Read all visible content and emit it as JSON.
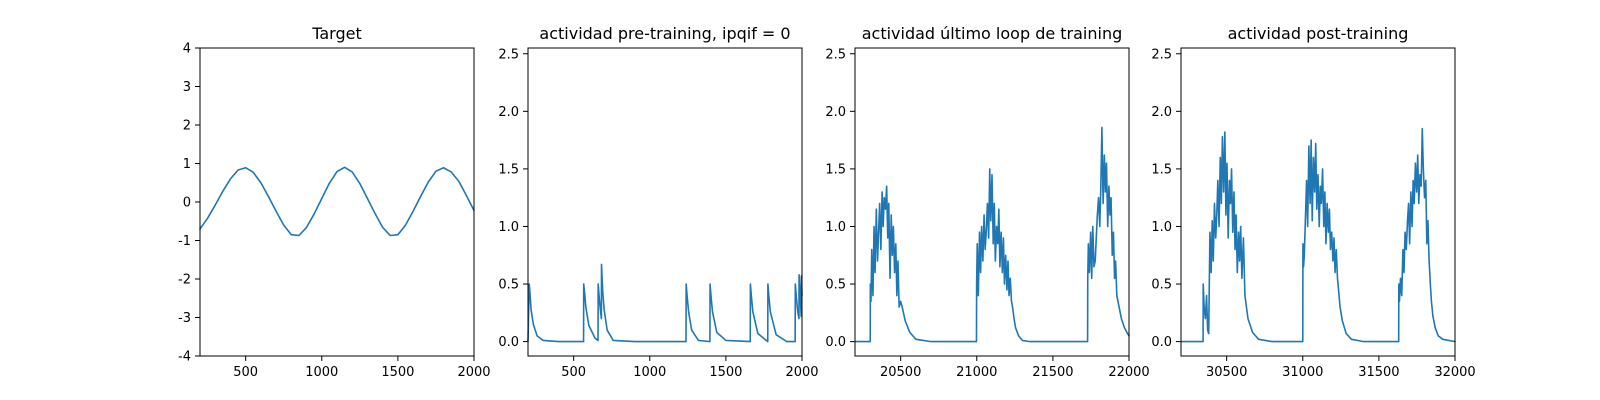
{
  "figure": {
    "background": "#ffffff",
    "line_color": "#1f77b4"
  },
  "chart_data": [
    {
      "type": "line",
      "title": "Target",
      "xlabel": "",
      "ylabel": "",
      "xlim": [
        200,
        2000
      ],
      "ylim": [
        -4,
        4
      ],
      "xticks": [
        500,
        1000,
        1500,
        2000
      ],
      "yticks": [
        -4,
        -3,
        -2,
        -1,
        0,
        1,
        2,
        3,
        4
      ],
      "grid": false,
      "series": [
        {
          "x": [
            200,
            250,
            300,
            350,
            400,
            450,
            500,
            550,
            600,
            650,
            700,
            750,
            800,
            850,
            900,
            950,
            1000,
            1050,
            1100,
            1150,
            1200,
            1250,
            1300,
            1350,
            1400,
            1450,
            1500,
            1550,
            1600,
            1650,
            1700,
            1750,
            1800,
            1850,
            1900,
            1950,
            2000
          ],
          "y": [
            -0.7,
            -0.42,
            -0.08,
            0.28,
            0.6,
            0.83,
            0.89,
            0.77,
            0.5,
            0.14,
            -0.24,
            -0.6,
            -0.85,
            -0.87,
            -0.66,
            -0.31,
            0.09,
            0.49,
            0.79,
            0.9,
            0.78,
            0.48,
            0.09,
            -0.3,
            -0.66,
            -0.87,
            -0.85,
            -0.6,
            -0.24,
            0.15,
            0.52,
            0.8,
            0.89,
            0.78,
            0.54,
            0.17,
            -0.22
          ]
        }
      ]
    },
    {
      "type": "line",
      "title": "actividad pre-training, ipqif = 0",
      "xlabel": "",
      "ylabel": "",
      "xlim": [
        200,
        2000
      ],
      "ylim": [
        -0.125,
        2.55
      ],
      "xticks": [
        500,
        1000,
        1500,
        2000
      ],
      "yticks": [
        0.0,
        0.5,
        1.0,
        1.5,
        2.0,
        2.5
      ],
      "yticklabels": [
        "0.0",
        "0.5",
        "1.0",
        "1.5",
        "2.0",
        "2.5"
      ],
      "grid": false,
      "series": [
        {
          "x": [
            200,
            208,
            212,
            220,
            235,
            260,
            300,
            400,
            500,
            565,
            566,
            572,
            580,
            600,
            640,
            660,
            661,
            668,
            675,
            682,
            683,
            690,
            700,
            720,
            760,
            900,
            1100,
            1238,
            1239,
            1245,
            1255,
            1275,
            1320,
            1395,
            1396,
            1402,
            1412,
            1440,
            1500,
            1660,
            1661,
            1667,
            1677,
            1710,
            1775,
            1776,
            1782,
            1792,
            1830,
            1900,
            1955,
            1956,
            1962,
            1972,
            1980,
            1981,
            1986,
            1992,
            1995,
            1996,
            2000
          ],
          "y": [
            0.0,
            0.5,
            0.44,
            0.28,
            0.15,
            0.05,
            0.01,
            0.0,
            0.0,
            0.0,
            0.5,
            0.42,
            0.3,
            0.14,
            0.03,
            0.01,
            0.5,
            0.38,
            0.28,
            0.2,
            0.67,
            0.45,
            0.28,
            0.1,
            0.01,
            0.0,
            0.0,
            0.0,
            0.5,
            0.4,
            0.26,
            0.1,
            0.01,
            0.0,
            0.5,
            0.4,
            0.26,
            0.08,
            0.01,
            0.0,
            0.5,
            0.4,
            0.26,
            0.07,
            0.0,
            0.5,
            0.4,
            0.26,
            0.06,
            0.0,
            0.0,
            0.5,
            0.4,
            0.26,
            0.2,
            0.58,
            0.45,
            0.3,
            0.22,
            0.57,
            0.4
          ]
        }
      ]
    },
    {
      "type": "line",
      "title": "actividad último loop de training",
      "xlabel": "",
      "ylabel": "",
      "xlim": [
        20200,
        22000
      ],
      "ylim": [
        -0.125,
        2.55
      ],
      "xticks": [
        20500,
        21000,
        21500,
        22000
      ],
      "yticks": [
        0.0,
        0.5,
        1.0,
        1.5,
        2.0,
        2.5
      ],
      "yticklabels": [
        "0.0",
        "0.5",
        "1.0",
        "1.5",
        "2.0",
        "2.5"
      ],
      "grid": false,
      "series": [
        {
          "x": [
            20200,
            20300,
            20301,
            20305,
            20310,
            20318,
            20325,
            20332,
            20340,
            20348,
            20355,
            20362,
            20370,
            20378,
            20385,
            20392,
            20400,
            20408,
            20415,
            20422,
            20430,
            20438,
            20445,
            20452,
            20460,
            20468,
            20475,
            20482,
            20490,
            20500,
            20510,
            20530,
            20560,
            20600,
            20700,
            20800,
            20900,
            20998,
            20999,
            21003,
            21010,
            21018,
            21025,
            21032,
            21040,
            21048,
            21055,
            21062,
            21070,
            21078,
            21085,
            21092,
            21100,
            21108,
            21115,
            21122,
            21130,
            21138,
            21145,
            21152,
            21160,
            21168,
            21175,
            21182,
            21190,
            21198,
            21205,
            21212,
            21220,
            21228,
            21235,
            21245,
            21255,
            21275,
            21300,
            21350,
            21450,
            21550,
            21650,
            21728,
            21729,
            21733,
            21740,
            21748,
            21755,
            21762,
            21770,
            21778,
            21785,
            21792,
            21800,
            21808,
            21815,
            21822,
            21830,
            21838,
            21845,
            21852,
            21860,
            21868,
            21875,
            21882,
            21890,
            21898,
            21905,
            21912,
            21920,
            21935,
            21950,
            21970,
            21990,
            22000
          ],
          "y": [
            0.0,
            0.0,
            0.5,
            0.35,
            0.8,
            0.4,
            1.0,
            0.6,
            1.15,
            0.7,
            0.95,
            1.2,
            0.8,
            1.3,
            1.0,
            1.25,
            1.15,
            1.35,
            0.9,
            1.2,
            0.55,
            1.1,
            0.75,
            1.0,
            0.6,
            0.85,
            0.4,
            0.7,
            0.3,
            0.35,
            0.3,
            0.18,
            0.08,
            0.02,
            0.0,
            0.0,
            0.0,
            0.0,
            0.5,
            0.85,
            0.4,
            0.95,
            0.6,
            1.0,
            0.7,
            1.1,
            0.8,
            0.95,
            1.2,
            0.9,
            1.5,
            1.05,
            1.45,
            0.85,
            1.2,
            0.7,
            1.0,
            0.85,
            1.15,
            0.65,
            0.95,
            0.6,
            0.9,
            0.5,
            0.75,
            0.45,
            0.7,
            0.4,
            0.55,
            0.35,
            0.3,
            0.2,
            0.12,
            0.05,
            0.01,
            0.0,
            0.0,
            0.0,
            0.0,
            0.0,
            0.55,
            0.85,
            0.6,
            0.95,
            0.55,
            1.0,
            0.65,
            0.7,
            0.9,
            1.1,
            1.25,
            1.0,
            1.35,
            1.86,
            1.2,
            1.62,
            1.3,
            1.55,
            1.0,
            1.35,
            1.1,
            1.25,
            0.75,
            0.95,
            0.55,
            0.7,
            0.4,
            0.3,
            0.2,
            0.12,
            0.07,
            0.05
          ]
        }
      ]
    },
    {
      "type": "line",
      "title": "actividad post-training",
      "xlabel": "",
      "ylabel": "",
      "xlim": [
        30200,
        32000
      ],
      "ylim": [
        -0.125,
        2.55
      ],
      "xticks": [
        30500,
        31000,
        31500,
        32000
      ],
      "yticks": [
        0.0,
        0.5,
        1.0,
        1.5,
        2.0,
        2.5
      ],
      "yticklabels": [
        "0.0",
        "0.5",
        "1.0",
        "1.5",
        "2.0",
        "2.5"
      ],
      "grid": false,
      "series": [
        {
          "x": [
            30200,
            30345,
            30346,
            30352,
            30360,
            30368,
            30375,
            30382,
            30390,
            30398,
            30405,
            30412,
            30420,
            30428,
            30435,
            30442,
            30450,
            30458,
            30465,
            30472,
            30480,
            30488,
            30495,
            30502,
            30510,
            30518,
            30525,
            30532,
            30540,
            30548,
            30555,
            30562,
            30570,
            30578,
            30585,
            30592,
            30600,
            30610,
            30620,
            30640,
            30670,
            30710,
            30800,
            30900,
            31000,
            31001,
            31005,
            31010,
            31018,
            31025,
            31032,
            31040,
            31048,
            31055,
            31062,
            31070,
            31078,
            31085,
            31092,
            31100,
            31108,
            31115,
            31122,
            31130,
            31138,
            31145,
            31152,
            31160,
            31168,
            31175,
            31182,
            31190,
            31198,
            31205,
            31212,
            31220,
            31228,
            31235,
            31245,
            31260,
            31285,
            31320,
            31400,
            31500,
            31630,
            31631,
            31635,
            31642,
            31650,
            31658,
            31665,
            31672,
            31680,
            31688,
            31695,
            31702,
            31710,
            31718,
            31725,
            31732,
            31740,
            31748,
            31755,
            31762,
            31770,
            31778,
            31785,
            31792,
            31800,
            31808,
            31815,
            31822,
            31830,
            31838,
            31845,
            31855,
            31870,
            31890,
            31920,
            31960,
            32000
          ],
          "y": [
            0.0,
            0.0,
            0.5,
            0.3,
            0.2,
            0.4,
            0.1,
            0.07,
            0.95,
            0.6,
            1.05,
            0.7,
            1.2,
            0.9,
            1.1,
            1.4,
            1.0,
            1.6,
            1.2,
            1.78,
            1.3,
            1.82,
            1.1,
            1.55,
            0.9,
            1.4,
            1.2,
            1.5,
            0.95,
            1.3,
            0.8,
            1.1,
            0.6,
            0.95,
            0.7,
            1.0,
            0.55,
            0.9,
            0.4,
            0.2,
            0.08,
            0.02,
            0.0,
            0.0,
            0.0,
            0.85,
            0.65,
            0.75,
            1.1,
            1.4,
            1.0,
            1.7,
            1.2,
            1.75,
            1.05,
            1.6,
            1.3,
            1.72,
            1.15,
            1.45,
            1.0,
            1.35,
            1.2,
            1.5,
            1.0,
            1.3,
            0.85,
            1.2,
            0.95,
            1.15,
            0.8,
            0.95,
            0.7,
            0.9,
            0.6,
            0.8,
            0.55,
            0.45,
            0.3,
            0.18,
            0.07,
            0.02,
            0.0,
            0.0,
            0.0,
            0.5,
            0.35,
            0.55,
            0.4,
            0.8,
            0.6,
            0.95,
            0.8,
            1.05,
            1.2,
            0.85,
            1.3,
            1.0,
            1.4,
            1.2,
            1.55,
            1.3,
            1.62,
            1.2,
            1.45,
            1.35,
            1.85,
            1.5,
            1.25,
            1.4,
            0.85,
            1.05,
            0.7,
            0.5,
            0.35,
            0.22,
            0.12,
            0.05,
            0.02,
            0.01,
            0.0
          ]
        }
      ]
    }
  ]
}
